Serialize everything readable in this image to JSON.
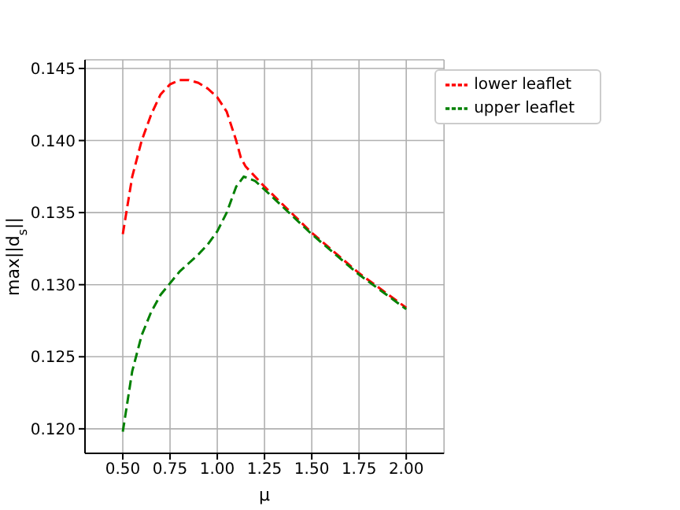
{
  "chart_data": {
    "type": "line",
    "xlabel": "μ",
    "ylabel": "max||d$_{s}$||",
    "xlim": [
      0.3,
      2.2
    ],
    "xticks": [
      {
        "value": 0.5,
        "label": "0.50"
      },
      {
        "value": 0.75,
        "label": "0.75"
      },
      {
        "value": 1.0,
        "label": "1.00"
      },
      {
        "value": 1.25,
        "label": "1.25"
      },
      {
        "value": 1.5,
        "label": "1.50"
      },
      {
        "value": 1.75,
        "label": "1.75"
      },
      {
        "value": 2.0,
        "label": "2.00"
      }
    ],
    "ylim": [
      0.1183,
      0.1456
    ],
    "yticks": [
      {
        "value": 0.12,
        "label": "0.120"
      },
      {
        "value": 0.125,
        "label": "0.125"
      },
      {
        "value": 0.13,
        "label": "0.130"
      },
      {
        "value": 0.135,
        "label": "0.135"
      },
      {
        "value": 0.14,
        "label": "0.140"
      },
      {
        "value": 0.145,
        "label": "0.145"
      }
    ],
    "grid": true,
    "legend": "top right",
    "marker": "none",
    "line_style": "dashed",
    "series": [
      {
        "name": "lower leaflet",
        "color": "#ff0000",
        "x": [
          0.5,
          0.55,
          0.6,
          0.65,
          0.7,
          0.75,
          0.8,
          0.85,
          0.9,
          0.95,
          1.0,
          1.05,
          1.1,
          1.125,
          1.15,
          1.2,
          1.25,
          1.5,
          1.75,
          2.0
        ],
        "values": [
          0.1335,
          0.1375,
          0.14,
          0.1418,
          0.1432,
          0.1439,
          0.1442,
          0.1442,
          0.144,
          0.1436,
          0.143,
          0.142,
          0.14,
          0.1388,
          0.1382,
          0.1375,
          0.1368,
          0.1336,
          0.1308,
          0.1284
        ]
      },
      {
        "name": "upper leaflet",
        "color": "#008000",
        "x": [
          0.5,
          0.55,
          0.6,
          0.65,
          0.7,
          0.75,
          0.8,
          0.85,
          0.9,
          0.95,
          1.0,
          1.05,
          1.1,
          1.14,
          1.2,
          1.25,
          1.5,
          1.75,
          2.0
        ],
        "values": [
          0.1198,
          0.124,
          0.1265,
          0.1281,
          0.1293,
          0.1301,
          0.1309,
          0.1315,
          0.1321,
          0.1328,
          0.1337,
          0.135,
          0.1368,
          0.1375,
          0.1372,
          0.1366,
          0.1335,
          0.1307,
          0.1283
        ]
      }
    ]
  }
}
